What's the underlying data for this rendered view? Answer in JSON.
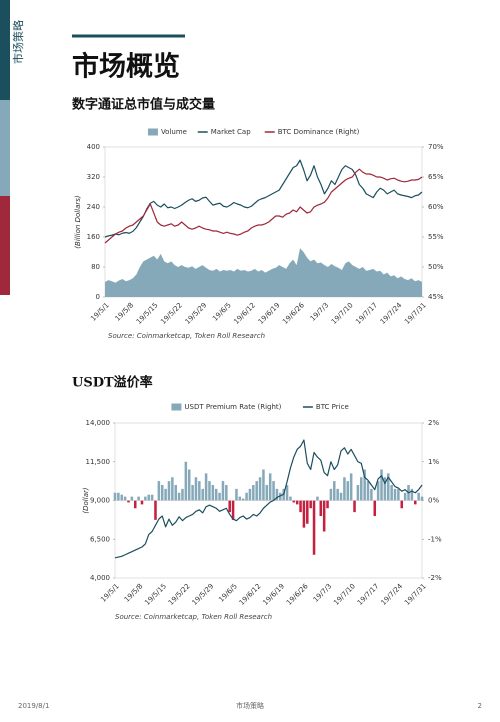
{
  "sidebar": {
    "label": "市场策略"
  },
  "header": {
    "title": "市场概览"
  },
  "chart_data": [
    {
      "type": "combo",
      "title": "数字通证总市值与成交量",
      "ylabel": "(Billion Dollars)",
      "source": "Source: Coinmarketcap, Token Roll Research",
      "grid": false,
      "categories": [
        "19/5/1",
        null,
        null,
        null,
        null,
        null,
        null,
        "19/5/8",
        null,
        null,
        null,
        null,
        null,
        null,
        "19/5/15",
        null,
        null,
        null,
        null,
        null,
        null,
        "19/5/22",
        null,
        null,
        null,
        null,
        null,
        null,
        "19/5/29",
        null,
        null,
        null,
        null,
        null,
        null,
        "19/6/5",
        null,
        null,
        null,
        null,
        null,
        null,
        "19/6/12",
        null,
        null,
        null,
        null,
        null,
        null,
        "19/6/19",
        null,
        null,
        null,
        null,
        null,
        null,
        "19/6/26",
        null,
        null,
        null,
        null,
        null,
        null,
        "19/7/3",
        null,
        null,
        null,
        null,
        null,
        null,
        "19/7/10",
        null,
        null,
        null,
        null,
        null,
        null,
        "19/7/17",
        null,
        null,
        null,
        null,
        null,
        null,
        "19/7/24",
        null,
        null,
        null,
        null,
        null,
        null,
        "19/7/31"
      ],
      "ylim": [
        0,
        400
      ],
      "yticks": [
        0,
        80,
        160,
        240,
        320,
        400
      ],
      "y2lim": [
        45,
        70
      ],
      "y2ticks": [
        {
          "value": 45,
          "label": "45%"
        },
        {
          "value": 50,
          "label": "50%"
        },
        {
          "value": 55,
          "label": "55%"
        },
        {
          "value": 60,
          "label": "60%"
        },
        {
          "value": 65,
          "label": "65%"
        },
        {
          "value": 70,
          "label": "70%"
        }
      ],
      "series": [
        {
          "name": "Volume",
          "type": "area",
          "color": "#86a9ba",
          "values": [
            40,
            45,
            42,
            38,
            44,
            48,
            42,
            45,
            50,
            60,
            80,
            95,
            100,
            105,
            110,
            100,
            115,
            95,
            90,
            95,
            85,
            80,
            85,
            80,
            78,
            82,
            75,
            80,
            85,
            78,
            72,
            70,
            75,
            68,
            72,
            70,
            72,
            68,
            75,
            70,
            72,
            68,
            70,
            75,
            68,
            72,
            65,
            70,
            75,
            78,
            85,
            80,
            75,
            90,
            100,
            85,
            130,
            120,
            105,
            95,
            100,
            90,
            92,
            85,
            80,
            88,
            82,
            78,
            72,
            90,
            95,
            85,
            80,
            75,
            80,
            70,
            72,
            75,
            68,
            70,
            60,
            65,
            55,
            58,
            50,
            55,
            48,
            45,
            50,
            42,
            45,
            40
          ]
        },
        {
          "name": "Market Cap",
          "type": "line",
          "color": "#1c4f5e",
          "values": [
            160,
            163,
            165,
            168,
            166,
            170,
            172,
            170,
            175,
            185,
            200,
            215,
            235,
            250,
            255,
            245,
            240,
            248,
            238,
            240,
            236,
            240,
            245,
            252,
            258,
            262,
            255,
            258,
            264,
            266,
            255,
            245,
            248,
            250,
            242,
            240,
            245,
            252,
            248,
            245,
            240,
            238,
            242,
            250,
            258,
            262,
            265,
            270,
            275,
            280,
            285,
            300,
            315,
            330,
            345,
            350,
            365,
            340,
            310,
            325,
            350,
            320,
            300,
            275,
            290,
            310,
            300,
            320,
            340,
            350,
            345,
            340,
            325,
            300,
            290,
            275,
            270,
            265,
            280,
            290,
            285,
            275,
            280,
            285,
            275,
            272,
            270,
            268,
            265,
            270,
            272,
            280
          ]
        },
        {
          "name": "BTC Dominance (Right)",
          "type": "line",
          "axis": "y2",
          "color": "#a0283b",
          "values": [
            54,
            54.5,
            55,
            55.5,
            55.8,
            56,
            56.5,
            56.8,
            57,
            57.5,
            58,
            58.5,
            59.5,
            60.5,
            59,
            57.5,
            57,
            56.8,
            57,
            57.2,
            56.8,
            57,
            57.5,
            57,
            56.5,
            56.3,
            56.5,
            56.8,
            56.5,
            56.3,
            56.2,
            56,
            56,
            55.8,
            55.6,
            55.8,
            55.6,
            55.5,
            55.3,
            55.5,
            55.8,
            56,
            56.5,
            56.8,
            57,
            57,
            57.2,
            57.5,
            58,
            58.5,
            58.5,
            58.3,
            58.8,
            59,
            59.5,
            59.2,
            60,
            59.5,
            59,
            59.2,
            60,
            60.3,
            60.5,
            60.8,
            61.5,
            62.5,
            63,
            63.5,
            64,
            64.5,
            64.8,
            65,
            65.8,
            66.3,
            65.8,
            65.5,
            65.5,
            65.3,
            65,
            65,
            64.8,
            64.5,
            64.7,
            64.8,
            64.5,
            64.3,
            64.2,
            64.3,
            64.5,
            64.5,
            64.6,
            65
          ]
        }
      ]
    },
    {
      "type": "combo",
      "title": "USDT溢价率",
      "ylabel": "(Dollar)",
      "source": "Source: Coinmarketcap, Token Roll Research",
      "grid": false,
      "categories": [
        "19/5/1",
        null,
        null,
        null,
        null,
        null,
        null,
        "19/5/8",
        null,
        null,
        null,
        null,
        null,
        null,
        "19/5/15",
        null,
        null,
        null,
        null,
        null,
        null,
        "19/5/22",
        null,
        null,
        null,
        null,
        null,
        null,
        "19/5/29",
        null,
        null,
        null,
        null,
        null,
        null,
        "19/6/5",
        null,
        null,
        null,
        null,
        null,
        null,
        "19/6/12",
        null,
        null,
        null,
        null,
        null,
        null,
        "19/6/19",
        null,
        null,
        null,
        null,
        null,
        null,
        "19/6/26",
        null,
        null,
        null,
        null,
        null,
        null,
        "19/7/3",
        null,
        null,
        null,
        null,
        null,
        null,
        "19/7/10",
        null,
        null,
        null,
        null,
        null,
        null,
        "19/7/17",
        null,
        null,
        null,
        null,
        null,
        null,
        "19/7/24",
        null,
        null,
        null,
        null,
        null,
        null,
        "19/7/31"
      ],
      "ylim": [
        4000,
        14000
      ],
      "yticks": [
        {
          "value": 4000,
          "label": "4,000"
        },
        {
          "value": 6500,
          "label": "6,500"
        },
        {
          "value": 9000,
          "label": "9,000"
        },
        {
          "value": 11500,
          "label": "11,500"
        },
        {
          "value": 14000,
          "label": "14,000"
        }
      ],
      "y2lim": [
        -2,
        2
      ],
      "y2ticks": [
        {
          "value": -2,
          "label": "-2%"
        },
        {
          "value": -1,
          "label": "-1%"
        },
        {
          "value": 0,
          "label": "0%"
        },
        {
          "value": 1,
          "label": "1%"
        },
        {
          "value": 2,
          "label": "2%"
        }
      ],
      "series": [
        {
          "name": "USDT Premium Rate (Right)",
          "type": "bar",
          "axis": "y2",
          "color": "#86a9ba",
          "negative_color": "#c4203f",
          "values": [
            0.2,
            0.2,
            0.15,
            0.1,
            -0.05,
            0.1,
            -0.2,
            0.1,
            -0.1,
            0.1,
            0.15,
            0.15,
            -0.5,
            0.5,
            0.4,
            0.3,
            0.5,
            0.6,
            0.4,
            0.2,
            0.3,
            1.0,
            0.8,
            0.4,
            0.6,
            0.5,
            0.3,
            0.7,
            0.5,
            0.4,
            0.3,
            0.2,
            0.5,
            0.4,
            -0.3,
            -0.5,
            0.3,
            0.1,
            0.05,
            0.2,
            0.3,
            0.4,
            0.5,
            0.6,
            0.8,
            0.4,
            0.7,
            0.5,
            0.3,
            0.2,
            0.3,
            0.4,
            0.1,
            -0.05,
            -0.1,
            -0.3,
            -0.7,
            -0.6,
            -0.2,
            -1.4,
            0.1,
            -0.4,
            -0.8,
            -0.2,
            0.3,
            0.5,
            0.3,
            0.2,
            0.6,
            0.5,
            0.7,
            -0.3,
            0.4,
            0.6,
            0.8,
            0.5,
            0.3,
            -0.4,
            0.5,
            0.8,
            0.6,
            0.7,
            0.4,
            0.3,
            0.3,
            -0.2,
            0.2,
            0.4,
            0.3,
            -0.1,
            0.2,
            0.1
          ]
        },
        {
          "name": "BTC Price",
          "type": "line",
          "color": "#1c4f5e",
          "values": [
            5300,
            5350,
            5400,
            5500,
            5600,
            5700,
            5800,
            5900,
            6000,
            6200,
            6800,
            7000,
            7400,
            7800,
            8000,
            7300,
            7800,
            7400,
            7600,
            7950,
            7700,
            7900,
            8000,
            8100,
            8300,
            8400,
            8200,
            8600,
            8700,
            8600,
            8500,
            8300,
            8400,
            8500,
            8100,
            7800,
            7700,
            7900,
            8000,
            7800,
            7900,
            8100,
            8000,
            8200,
            8500,
            8700,
            8900,
            9000,
            9200,
            9300,
            9400,
            10200,
            11100,
            11800,
            12300,
            12500,
            12900,
            11400,
            11000,
            12100,
            11800,
            11600,
            10800,
            10600,
            11500,
            11000,
            11300,
            12200,
            12400,
            12000,
            12300,
            11900,
            11500,
            11400,
            10500,
            10300,
            10000,
            9700,
            10400,
            10600,
            10100,
            10500,
            10200,
            9900,
            9800,
            9600,
            9700,
            9500,
            9600,
            9500,
            9700,
            10000
          ]
        }
      ]
    }
  ],
  "footer": {
    "date": "2019/8/1",
    "section": "市场策略",
    "page": "2"
  }
}
